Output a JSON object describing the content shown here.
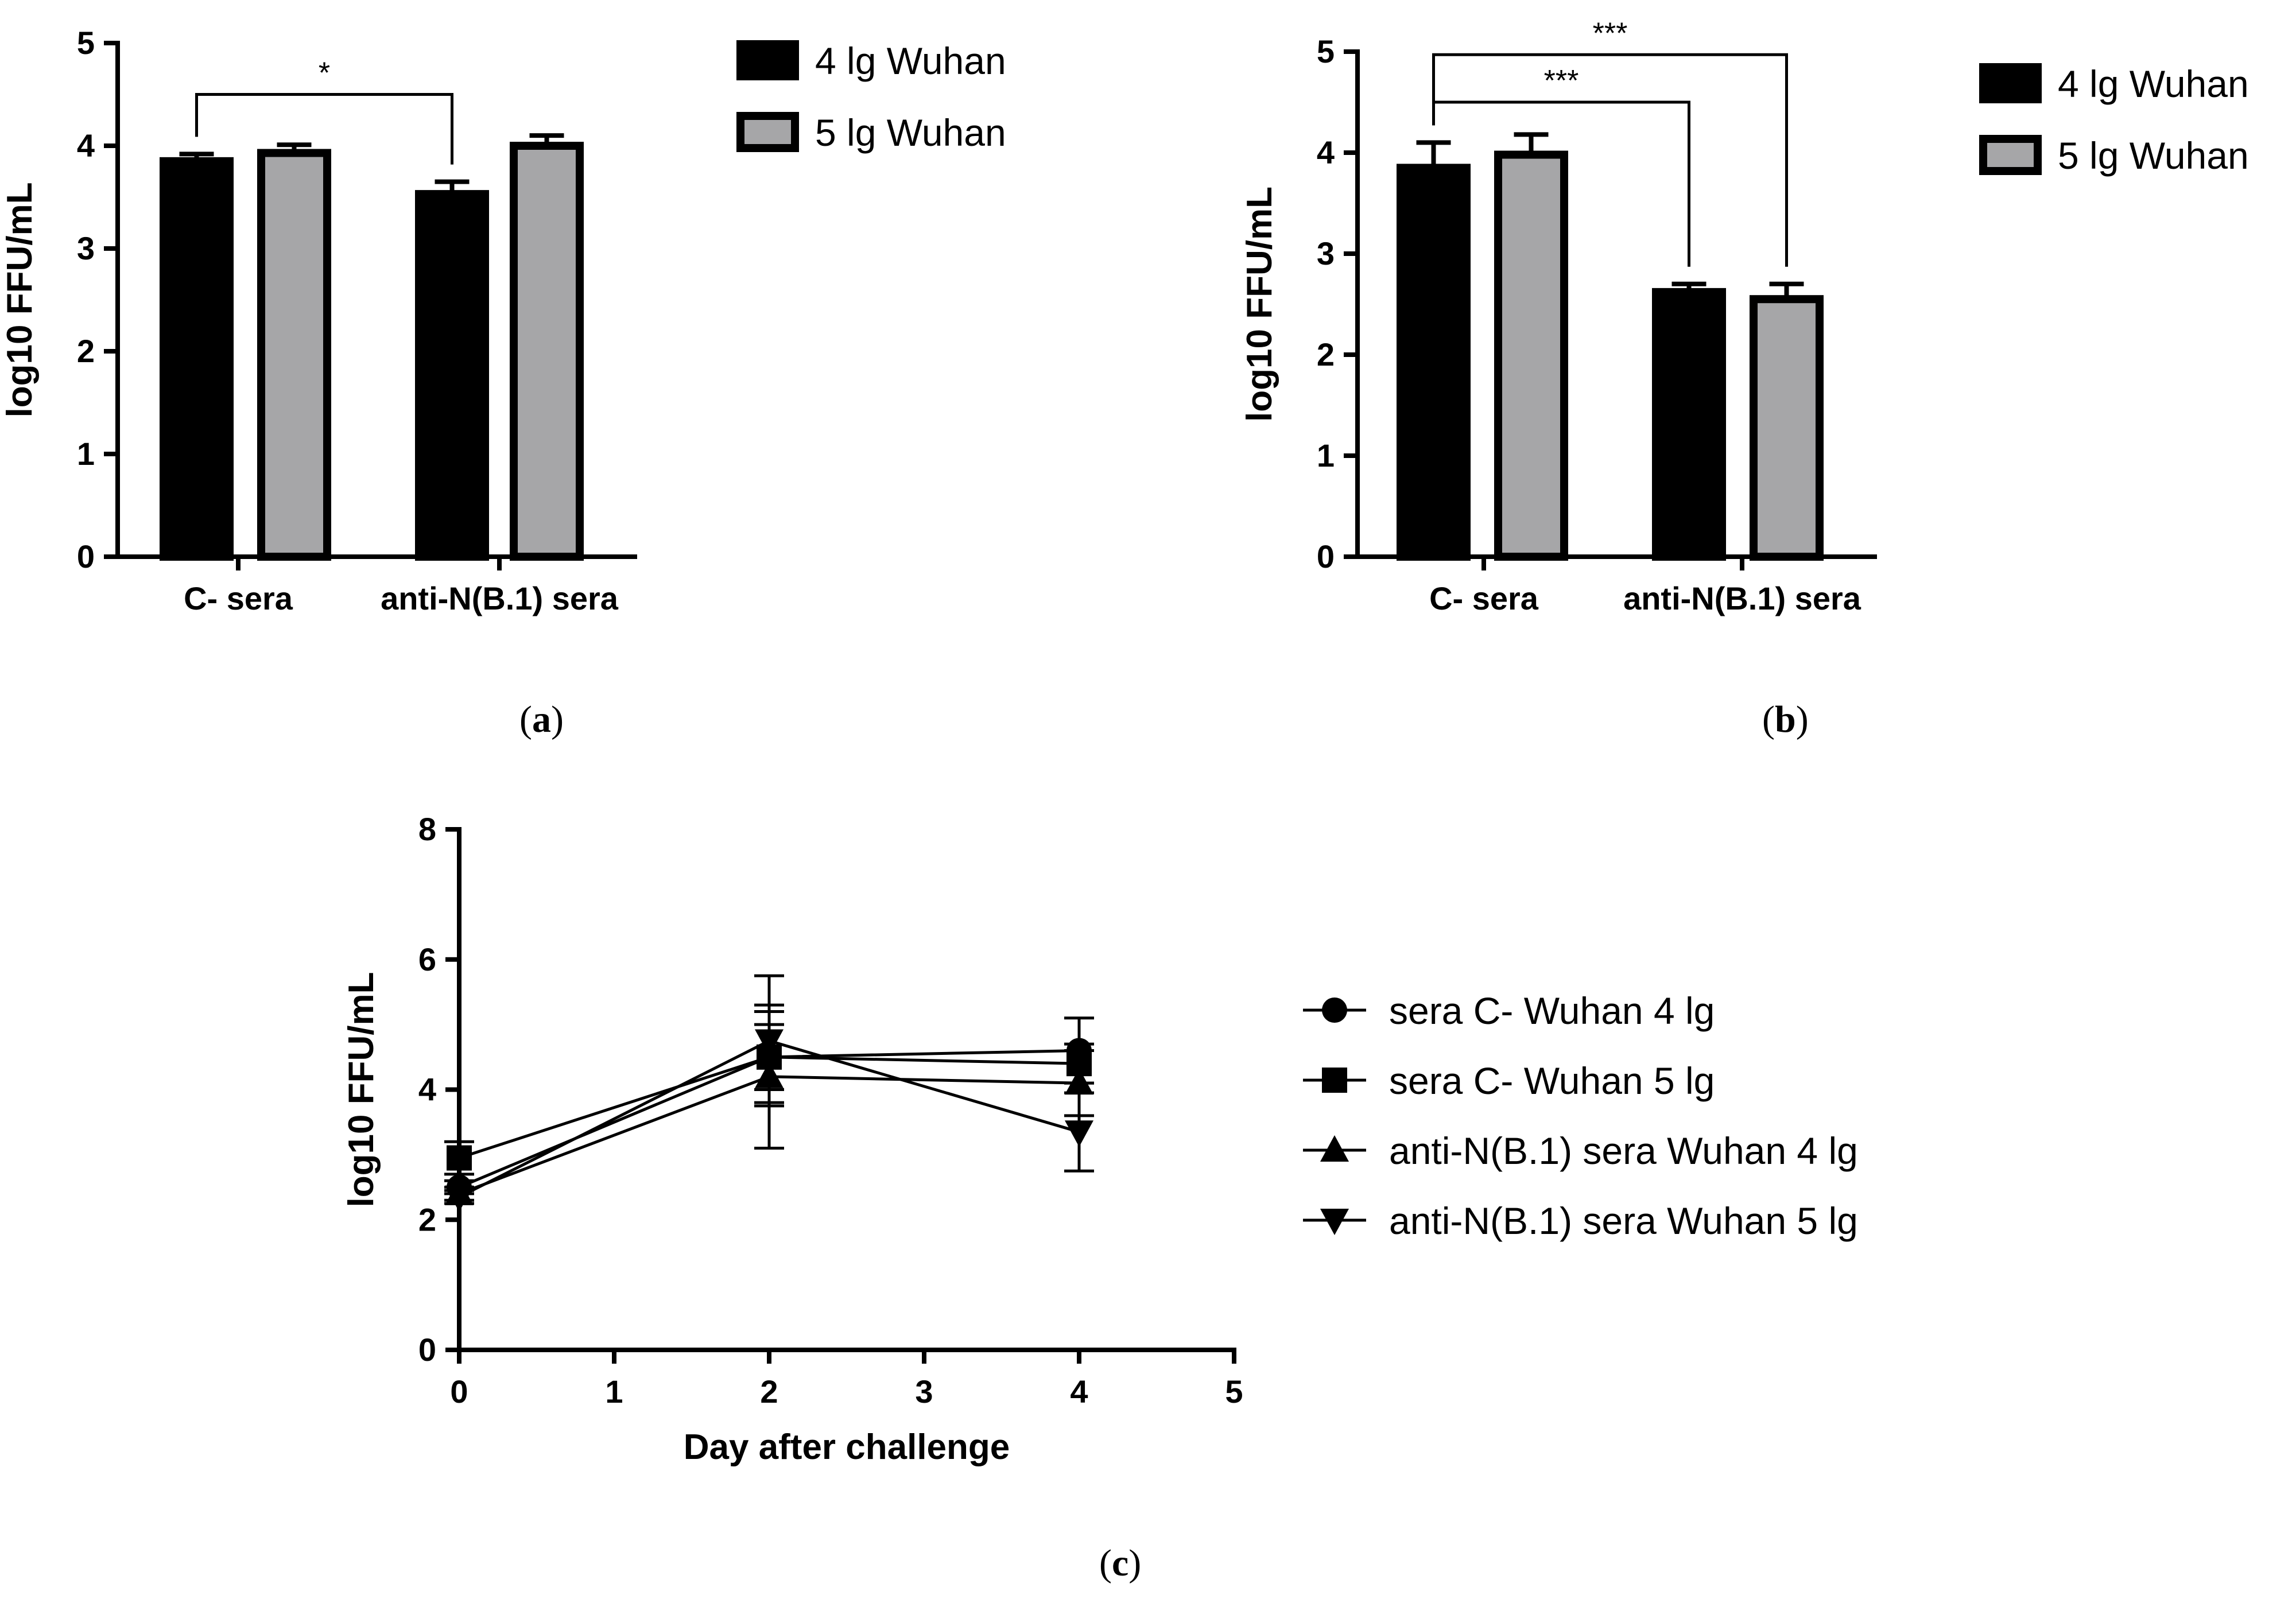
{
  "colors": {
    "series1": "#000000",
    "series2": "#a6a6a8",
    "ink": "#000000"
  },
  "chart_data": [
    {
      "type": "bar",
      "panel": "(a)",
      "panel_open": "(",
      "panel_letter": "a",
      "panel_close": ")",
      "ylabel": "log10 FFU/mL",
      "ylim": [
        0,
        5
      ],
      "yticks": [
        "0",
        "1",
        "2",
        "3",
        "4",
        "5"
      ],
      "categories": [
        "C- sera",
        "anti-N(B.1) sera"
      ],
      "series": [
        {
          "name": "4 lg Wuhan",
          "values": [
            3.85,
            3.53
          ],
          "errors": [
            0.07,
            0.12
          ]
        },
        {
          "name": "5 lg Wuhan",
          "values": [
            3.93,
            4.0
          ],
          "errors": [
            0.08,
            0.1
          ]
        }
      ],
      "significance": [
        {
          "label": "*",
          "from_category": 0,
          "from_series": 0,
          "to_category": 1,
          "to_series": 0,
          "level": 4.5
        }
      ],
      "legend_position": "top-right"
    },
    {
      "type": "bar",
      "panel": "(b)",
      "panel_open": "(",
      "panel_letter": "b",
      "panel_close": ")",
      "ylabel": "log10 FFU/mL",
      "ylim": [
        0,
        5
      ],
      "yticks": [
        "0",
        "1",
        "2",
        "3",
        "4",
        "5"
      ],
      "categories": [
        "C- sera",
        "anti-N(B.1) sera"
      ],
      "series": [
        {
          "name": "4 lg Wuhan",
          "values": [
            3.85,
            2.62
          ],
          "errors": [
            0.25,
            0.08
          ]
        },
        {
          "name": "5 lg Wuhan",
          "values": [
            3.98,
            2.55
          ],
          "errors": [
            0.2,
            0.15
          ]
        }
      ],
      "significance": [
        {
          "label": "***",
          "from_category": 0,
          "from_series": 0,
          "to_category": 1,
          "to_series": 0,
          "level": 4.5
        },
        {
          "label": "***",
          "from_category": 0,
          "from_series": 0,
          "to_category": 1,
          "to_series": 1,
          "level": 4.97
        }
      ],
      "legend_position": "top-right"
    },
    {
      "type": "line",
      "panel": "(c)",
      "panel_open": "(",
      "panel_letter": "c",
      "panel_close": ")",
      "xlabel": "Day after challenge",
      "ylabel": "log10 FFU/mL",
      "xlim": [
        0,
        5
      ],
      "ylim": [
        0,
        8
      ],
      "xticks": [
        "0",
        "1",
        "2",
        "3",
        "4",
        "5"
      ],
      "yticks": [
        "0",
        "2",
        "4",
        "6",
        "8"
      ],
      "x": [
        0,
        2,
        4
      ],
      "series": [
        {
          "name": "sera C- Wuhan 4 lg",
          "marker": "circle",
          "values": [
            2.5,
            4.5,
            4.6
          ],
          "errors": [
            0.1,
            0.7,
            0.5
          ]
        },
        {
          "name": "sera C- Wuhan 5 lg",
          "marker": "square",
          "values": [
            2.95,
            4.5,
            4.4
          ],
          "errors": [
            0.25,
            0.5,
            0.3
          ]
        },
        {
          "name": "anti-N(B.1) sera Wuhan 4 lg",
          "marker": "triangle-up",
          "values": [
            2.4,
            4.2,
            4.1
          ],
          "errors": [
            0.1,
            1.1,
            0.5
          ]
        },
        {
          "name": "anti-N(B.1) sera Wuhan 5 lg",
          "marker": "triangle-down",
          "values": [
            2.35,
            4.75,
            3.35
          ],
          "errors": [
            0.1,
            1.0,
            0.6
          ]
        }
      ],
      "legend_position": "right"
    }
  ]
}
